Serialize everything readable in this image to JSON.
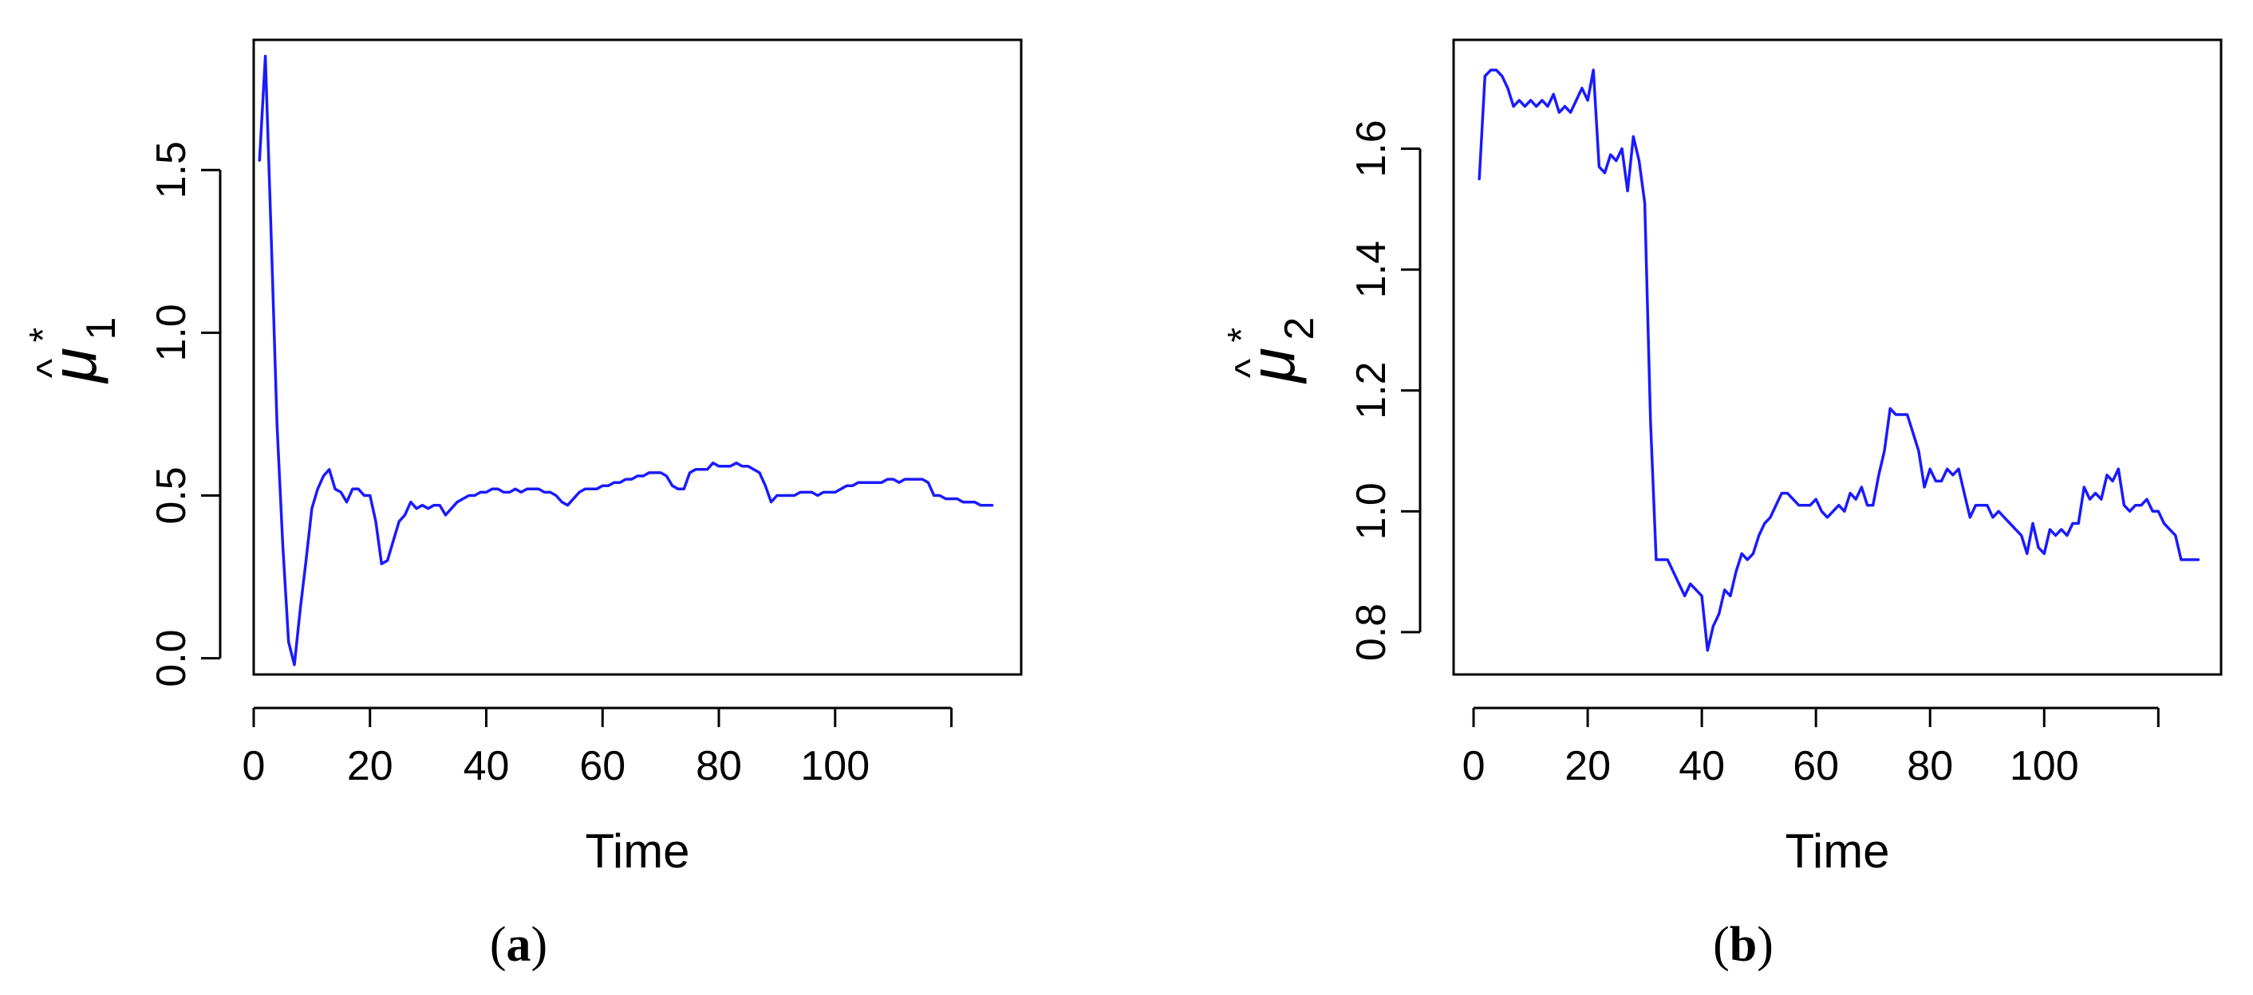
{
  "figure": {
    "line_color": "#1a1aff",
    "axis_color": "#000000",
    "background": "#ffffff"
  },
  "chart_data": [
    {
      "type": "line",
      "panel_label": "a",
      "xlabel": "Time",
      "ylabel": "μ̂*1",
      "ylabel_symbol": "μ",
      "ylabel_subscript": "1",
      "ylabel_superscript": "*",
      "xlim": [
        0,
        132
      ],
      "ylim": [
        -0.05,
        1.9
      ],
      "xticks": [
        0,
        20,
        40,
        60,
        80,
        100,
        120
      ],
      "xtick_labels": [
        "0",
        "20",
        "40",
        "60",
        "80",
        "100",
        ""
      ],
      "yticks": [
        0.0,
        0.5,
        1.0,
        1.5
      ],
      "ytick_labels": [
        "0.0",
        "0.5",
        "1.0",
        "1.5"
      ],
      "series": [
        {
          "x": [
            1,
            2,
            3,
            4,
            5,
            6,
            7,
            8,
            9,
            10,
            11,
            12,
            13,
            14,
            15,
            16,
            17,
            18,
            19,
            20,
            21,
            22,
            23,
            24,
            25,
            26,
            27,
            28,
            29,
            30,
            31,
            32,
            33,
            34,
            35,
            36,
            37,
            38,
            39,
            40,
            41,
            42,
            43,
            44,
            45,
            46,
            47,
            48,
            49,
            50,
            51,
            52,
            53,
            54,
            55,
            56,
            57,
            58,
            59,
            60,
            61,
            62,
            63,
            64,
            65,
            66,
            67,
            68,
            69,
            70,
            71,
            72,
            73,
            74,
            75,
            76,
            77,
            78,
            79,
            80,
            81,
            82,
            83,
            84,
            85,
            86,
            87,
            88,
            89,
            90,
            91,
            92,
            93,
            94,
            95,
            96,
            97,
            98,
            99,
            100,
            101,
            102,
            103,
            104,
            105,
            106,
            107,
            108,
            109,
            110,
            111,
            112,
            113,
            114,
            115,
            116,
            117,
            118,
            119,
            120,
            121,
            122,
            123,
            124,
            125,
            126,
            127
          ],
          "y": [
            1.53,
            1.85,
            1.3,
            0.72,
            0.35,
            0.05,
            -0.02,
            0.15,
            0.3,
            0.46,
            0.52,
            0.56,
            0.58,
            0.52,
            0.51,
            0.48,
            0.52,
            0.52,
            0.5,
            0.5,
            0.42,
            0.29,
            0.3,
            0.36,
            0.42,
            0.44,
            0.48,
            0.46,
            0.47,
            0.46,
            0.47,
            0.47,
            0.44,
            0.46,
            0.48,
            0.49,
            0.5,
            0.5,
            0.51,
            0.51,
            0.52,
            0.52,
            0.51,
            0.51,
            0.52,
            0.51,
            0.52,
            0.52,
            0.52,
            0.51,
            0.51,
            0.5,
            0.48,
            0.47,
            0.49,
            0.51,
            0.52,
            0.52,
            0.52,
            0.53,
            0.53,
            0.54,
            0.54,
            0.55,
            0.55,
            0.56,
            0.56,
            0.57,
            0.57,
            0.57,
            0.56,
            0.53,
            0.52,
            0.52,
            0.57,
            0.58,
            0.58,
            0.58,
            0.6,
            0.59,
            0.59,
            0.59,
            0.6,
            0.59,
            0.59,
            0.58,
            0.57,
            0.53,
            0.48,
            0.5,
            0.5,
            0.5,
            0.5,
            0.51,
            0.51,
            0.51,
            0.5,
            0.51,
            0.51,
            0.51,
            0.52,
            0.53,
            0.53,
            0.54,
            0.54,
            0.54,
            0.54,
            0.54,
            0.55,
            0.55,
            0.54,
            0.55,
            0.55,
            0.55,
            0.55,
            0.54,
            0.5,
            0.5,
            0.49,
            0.49,
            0.49,
            0.48,
            0.48,
            0.48,
            0.47,
            0.47,
            0.47
          ]
        }
      ]
    },
    {
      "type": "line",
      "panel_label": "b",
      "xlabel": "Time",
      "ylabel": "μ̂*2",
      "ylabel_symbol": "μ",
      "ylabel_subscript": "2",
      "ylabel_superscript": "*",
      "xlim": [
        -3.5,
        131
      ],
      "ylim": [
        0.73,
        1.78
      ],
      "xticks": [
        0,
        20,
        40,
        60,
        80,
        100,
        120
      ],
      "xtick_labels": [
        "0",
        "20",
        "40",
        "60",
        "80",
        "100",
        ""
      ],
      "yticks": [
        0.8,
        1.0,
        1.2,
        1.4,
        1.6
      ],
      "ytick_labels": [
        "0.8",
        "1.0",
        "1.2",
        "1.4",
        "1.6"
      ],
      "series": [
        {
          "x": [
            1,
            2,
            3,
            4,
            5,
            6,
            7,
            8,
            9,
            10,
            11,
            12,
            13,
            14,
            15,
            16,
            17,
            18,
            19,
            20,
            21,
            22,
            23,
            24,
            25,
            26,
            27,
            28,
            29,
            30,
            31,
            32,
            33,
            34,
            35,
            36,
            37,
            38,
            39,
            40,
            41,
            42,
            43,
            44,
            45,
            46,
            47,
            48,
            49,
            50,
            51,
            52,
            53,
            54,
            55,
            56,
            57,
            58,
            59,
            60,
            61,
            62,
            63,
            64,
            65,
            66,
            67,
            68,
            69,
            70,
            71,
            72,
            73,
            74,
            75,
            76,
            77,
            78,
            79,
            80,
            81,
            82,
            83,
            84,
            85,
            86,
            87,
            88,
            89,
            90,
            91,
            92,
            93,
            94,
            95,
            96,
            97,
            98,
            99,
            100,
            101,
            102,
            103,
            104,
            105,
            106,
            107,
            108,
            109,
            110,
            111,
            112,
            113,
            114,
            115,
            116,
            117,
            118,
            119,
            120,
            121,
            122,
            123,
            124,
            125,
            126,
            127
          ],
          "y": [
            1.55,
            1.72,
            1.73,
            1.73,
            1.72,
            1.7,
            1.67,
            1.68,
            1.67,
            1.68,
            1.67,
            1.68,
            1.67,
            1.69,
            1.66,
            1.67,
            1.66,
            1.68,
            1.7,
            1.68,
            1.73,
            1.57,
            1.56,
            1.59,
            1.58,
            1.6,
            1.53,
            1.62,
            1.58,
            1.51,
            1.15,
            0.92,
            0.92,
            0.92,
            0.9,
            0.88,
            0.86,
            0.88,
            0.87,
            0.86,
            0.77,
            0.81,
            0.83,
            0.87,
            0.86,
            0.9,
            0.93,
            0.92,
            0.93,
            0.96,
            0.98,
            0.99,
            1.01,
            1.03,
            1.03,
            1.02,
            1.01,
            1.01,
            1.01,
            1.02,
            1.0,
            0.99,
            1.0,
            1.01,
            1.0,
            1.03,
            1.02,
            1.04,
            1.01,
            1.01,
            1.06,
            1.1,
            1.17,
            1.16,
            1.16,
            1.16,
            1.13,
            1.1,
            1.04,
            1.07,
            1.05,
            1.05,
            1.07,
            1.06,
            1.07,
            1.03,
            0.99,
            1.01,
            1.01,
            1.01,
            0.99,
            1.0,
            0.99,
            0.98,
            0.97,
            0.96,
            0.93,
            0.98,
            0.94,
            0.93,
            0.97,
            0.96,
            0.97,
            0.96,
            0.98,
            0.98,
            1.04,
            1.02,
            1.03,
            1.02,
            1.06,
            1.05,
            1.07,
            1.01,
            1.0,
            1.01,
            1.01,
            1.02,
            1.0,
            1.0,
            0.98,
            0.97,
            0.96,
            0.92,
            0.92,
            0.92,
            0.92
          ]
        }
      ]
    }
  ]
}
